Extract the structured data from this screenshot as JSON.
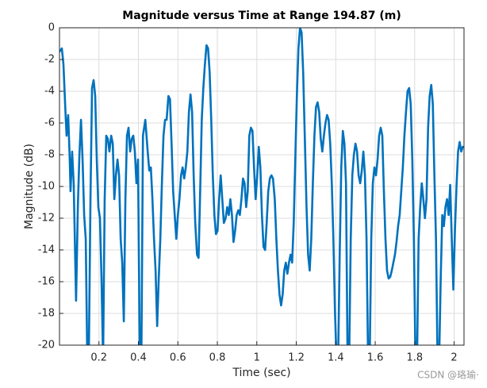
{
  "chart_data": {
    "type": "line",
    "title": "Magnitude versus Time at Range 194.87 (m)",
    "xlabel": "Time (sec)",
    "ylabel": "Magnitude (dB)",
    "watermark": "CSDN @珞瑜·",
    "xlim": [
      0,
      2.05
    ],
    "ylim": [
      -20,
      0
    ],
    "xticks": [
      0.2,
      0.4,
      0.6,
      0.8,
      1,
      1.2,
      1.4,
      1.6,
      1.8,
      2
    ],
    "yticks": [
      0,
      -2,
      -4,
      -6,
      -8,
      -10,
      -12,
      -14,
      -16,
      -18,
      -20
    ],
    "grid": true,
    "x": [
      0.0,
      0.012,
      0.02,
      0.032,
      0.036,
      0.044,
      0.052,
      0.056,
      0.064,
      0.072,
      0.084,
      0.093,
      0.101,
      0.109,
      0.117,
      0.125,
      0.133,
      0.141,
      0.149,
      0.157,
      0.165,
      0.173,
      0.181,
      0.189,
      0.197,
      0.205,
      0.213,
      0.221,
      0.229,
      0.237,
      0.245,
      0.253,
      0.262,
      0.27,
      0.278,
      0.286,
      0.294,
      0.302,
      0.31,
      0.318,
      0.326,
      0.334,
      0.342,
      0.35,
      0.358,
      0.366,
      0.374,
      0.382,
      0.39,
      0.398,
      0.407,
      0.415,
      0.423,
      0.435,
      0.447,
      0.455,
      0.463,
      0.471,
      0.479,
      0.487,
      0.495,
      0.503,
      0.511,
      0.519,
      0.527,
      0.535,
      0.543,
      0.552,
      0.56,
      0.568,
      0.576,
      0.584,
      0.592,
      0.6,
      0.608,
      0.616,
      0.624,
      0.632,
      0.64,
      0.648,
      0.656,
      0.664,
      0.672,
      0.68,
      0.688,
      0.697,
      0.705,
      0.713,
      0.721,
      0.729,
      0.737,
      0.745,
      0.753,
      0.761,
      0.769,
      0.777,
      0.785,
      0.793,
      0.801,
      0.809,
      0.817,
      0.825,
      0.833,
      0.842,
      0.85,
      0.858,
      0.866,
      0.874,
      0.882,
      0.89,
      0.898,
      0.906,
      0.914,
      0.922,
      0.93,
      0.938,
      0.946,
      0.954,
      0.962,
      0.97,
      0.978,
      0.986,
      0.994,
      1.002,
      1.01,
      1.018,
      1.026,
      1.034,
      1.042,
      1.05,
      1.058,
      1.066,
      1.074,
      1.082,
      1.091,
      1.099,
      1.107,
      1.115,
      1.123,
      1.131,
      1.139,
      1.147,
      1.155,
      1.163,
      1.171,
      1.179,
      1.187,
      1.195,
      1.203,
      1.211,
      1.219,
      1.227,
      1.235,
      1.244,
      1.252,
      1.26,
      1.268,
      1.276,
      1.284,
      1.292,
      1.3,
      1.308,
      1.316,
      1.324,
      1.332,
      1.34,
      1.348,
      1.356,
      1.364,
      1.372,
      1.38,
      1.388,
      1.396,
      1.404,
      1.412,
      1.42,
      1.428,
      1.436,
      1.444,
      1.452,
      1.46,
      1.468,
      1.476,
      1.484,
      1.492,
      1.5,
      1.508,
      1.516,
      1.524,
      1.532,
      1.54,
      1.548,
      1.556,
      1.564,
      1.572,
      1.58,
      1.588,
      1.596,
      1.604,
      1.612,
      1.62,
      1.628,
      1.636,
      1.644,
      1.652,
      1.66,
      1.668,
      1.676,
      1.684,
      1.692,
      1.7,
      1.708,
      1.716,
      1.724,
      1.732,
      1.74,
      1.748,
      1.756,
      1.764,
      1.772,
      1.78,
      1.788,
      1.796,
      1.804,
      1.812,
      1.82,
      1.828,
      1.836,
      1.844,
      1.852,
      1.86,
      1.868,
      1.876,
      1.884,
      1.892,
      1.9,
      1.908,
      1.916,
      1.924,
      1.932,
      1.94,
      1.948,
      1.956,
      1.964,
      1.972,
      1.98,
      1.988,
      1.996,
      2.004,
      2.012,
      2.02,
      2.028,
      2.036,
      2.044
    ],
    "series": [
      {
        "color": "#0072bd",
        "values": [
          -1.5,
          -1.3,
          -2.3,
          -5.8,
          -6.8,
          -5.5,
          -8.3,
          -10.3,
          -7.8,
          -9.8,
          -17.2,
          -11.3,
          -8.0,
          -5.8,
          -8.3,
          -11.8,
          -13.3,
          -21,
          -20.3,
          -10.8,
          -3.8,
          -3.3,
          -4.3,
          -8.3,
          -11.3,
          -12.0,
          -15.8,
          -21,
          -10.8,
          -6.8,
          -7.0,
          -7.8,
          -6.8,
          -7.3,
          -10.8,
          -9.3,
          -8.3,
          -9.3,
          -13.3,
          -14.8,
          -18.5,
          -10.8,
          -6.8,
          -6.3,
          -7.8,
          -7.0,
          -6.8,
          -7.8,
          -9.8,
          -8.3,
          -21,
          -21,
          -6.8,
          -5.8,
          -7.8,
          -9.0,
          -8.8,
          -10.8,
          -13.3,
          -15.3,
          -18.8,
          -15.8,
          -13.3,
          -9.8,
          -6.8,
          -5.8,
          -5.8,
          -4.3,
          -4.5,
          -7.3,
          -10.3,
          -11.8,
          -13.3,
          -11.8,
          -10.8,
          -9.3,
          -8.8,
          -9.5,
          -8.8,
          -7.8,
          -5.3,
          -4.2,
          -5.3,
          -9.3,
          -12.3,
          -14.3,
          -14.5,
          -10.3,
          -5.8,
          -3.8,
          -2.3,
          -1.1,
          -1.3,
          -2.8,
          -5.8,
          -9.3,
          -11.8,
          -13.0,
          -12.8,
          -10.8,
          -9.3,
          -10.8,
          -12.3,
          -12.0,
          -11.3,
          -11.8,
          -10.8,
          -11.8,
          -13.5,
          -12.8,
          -11.8,
          -11.5,
          -11.8,
          -10.8,
          -9.5,
          -9.8,
          -11.3,
          -10.3,
          -6.8,
          -6.3,
          -6.5,
          -8.8,
          -10.8,
          -9.3,
          -7.5,
          -8.8,
          -11.8,
          -13.8,
          -14.0,
          -12.3,
          -10.3,
          -9.5,
          -9.3,
          -9.5,
          -10.8,
          -13.3,
          -15.3,
          -16.8,
          -17.5,
          -16.8,
          -15.3,
          -14.8,
          -15.5,
          -14.8,
          -14.3,
          -14.8,
          -12.3,
          -8.3,
          -4.3,
          -1.3,
          0,
          -0.3,
          -2.8,
          -7.3,
          -11.3,
          -14.3,
          -15.3,
          -13.3,
          -9.8,
          -6.8,
          -5.0,
          -4.7,
          -5.3,
          -7.0,
          -7.8,
          -6.8,
          -6.0,
          -5.5,
          -5.8,
          -7.3,
          -9.8,
          -13.3,
          -17.8,
          -21,
          -21,
          -14.3,
          -8.8,
          -6.5,
          -7.3,
          -9.8,
          -21,
          -21,
          -13.3,
          -9.3,
          -8.0,
          -7.3,
          -7.8,
          -9.3,
          -9.8,
          -9.0,
          -7.8,
          -9.3,
          -13.3,
          -21,
          -21,
          -13.3,
          -9.8,
          -8.8,
          -9.3,
          -8.3,
          -6.8,
          -6.3,
          -6.8,
          -10.3,
          -13.3,
          -15.3,
          -15.8,
          -15.7,
          -15.3,
          -14.8,
          -14.3,
          -13.5,
          -12.5,
          -11.8,
          -10.3,
          -8.8,
          -6.8,
          -5.3,
          -4.0,
          -3.8,
          -4.8,
          -8.3,
          -13.3,
          -21,
          -21,
          -13.3,
          -11.3,
          -9.8,
          -10.8,
          -12.0,
          -10.8,
          -6.3,
          -4.3,
          -3.6,
          -4.8,
          -9.3,
          -13.3,
          -21,
          -21,
          -15.8,
          -11.8,
          -12.5,
          -11.3,
          -10.8,
          -11.8,
          -9.9,
          -13.3,
          -16.5,
          -12.8,
          -10.0,
          -7.8,
          -7.2,
          -7.8,
          -7.5
        ]
      }
    ]
  }
}
